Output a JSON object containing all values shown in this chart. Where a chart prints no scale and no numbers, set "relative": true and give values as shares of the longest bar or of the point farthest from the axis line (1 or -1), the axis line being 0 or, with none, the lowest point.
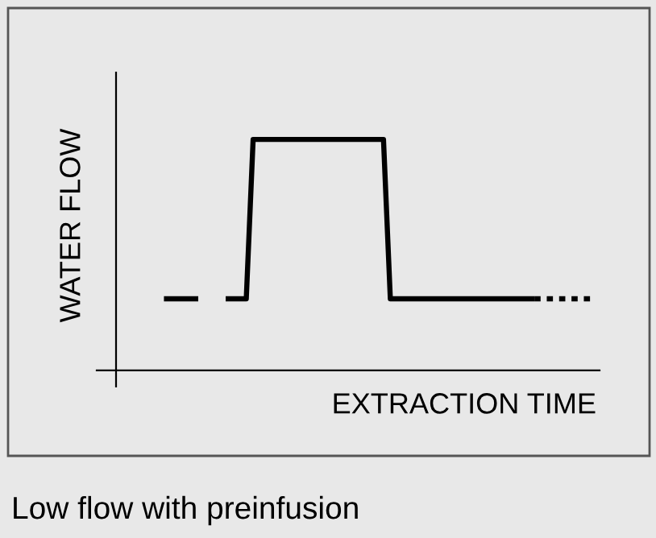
{
  "chart_data": {
    "type": "line",
    "relative": true,
    "xlabel": "EXTRACTION TIME",
    "ylabel": "WATER FLOW",
    "annotations": [
      "Low flow with preinfusion"
    ],
    "legend": false,
    "marker": "none",
    "categories": [
      null,
      null,
      null,
      null,
      null,
      null,
      null,
      null,
      null,
      null,
      null,
      null,
      null,
      null,
      null,
      null,
      null,
      null,
      null,
      null,
      null,
      null,
      null,
      null,
      null,
      null,
      null,
      null,
      null,
      null,
      null,
      null,
      null,
      null,
      null,
      null,
      null,
      null,
      null,
      null,
      null,
      null,
      null,
      null,
      null,
      null,
      null,
      null,
      null,
      null,
      null,
      null,
      null,
      null,
      null,
      null,
      null,
      null,
      null,
      null,
      null,
      null,
      null,
      null,
      null,
      null,
      null,
      null,
      null,
      null,
      null
    ],
    "series": [
      {
        "color": "#000000",
        "line_style": "solid",
        "values": [
          null,
          null,
          null,
          null,
          null,
          null,
          null,
          0.31,
          0.31,
          0.31,
          0.31,
          0.31,
          0.31,
          null,
          null,
          null,
          null,
          null,
          null,
          null,
          null,
          null,
          null,
          null,
          null,
          null,
          null,
          null,
          null,
          null,
          null,
          null,
          null,
          null,
          null,
          null,
          null,
          null,
          null,
          null,
          null,
          null,
          null,
          null,
          null,
          null,
          null,
          null,
          null,
          null,
          null,
          null,
          null,
          null,
          null,
          null,
          null,
          null,
          null,
          null,
          null,
          null,
          null,
          null,
          null,
          null,
          null,
          null,
          null,
          null,
          null
        ]
      },
      {
        "color": "#000000",
        "line_style": "solid",
        "values": [
          null,
          null,
          null,
          null,
          null,
          null,
          null,
          null,
          null,
          null,
          null,
          null,
          null,
          null,
          null,
          null,
          0.31,
          0.31,
          0.31,
          0.31,
          1,
          1,
          1,
          1,
          1,
          1,
          1,
          1,
          1,
          1,
          1,
          1,
          1,
          1,
          1,
          1,
          1,
          1,
          1,
          1,
          0.31,
          0.31,
          0.31,
          0.31,
          0.31,
          0.31,
          0.31,
          0.31,
          0.31,
          0.31,
          0.31,
          0.31,
          0.31,
          0.31,
          0.31,
          0.31,
          0.31,
          0.31,
          0.31,
          0.31,
          0.31,
          0.31,
          null,
          null,
          null,
          null,
          null,
          null,
          null,
          null,
          null
        ]
      },
      {
        "color": "#000000",
        "line_style": "dotted",
        "values": [
          null,
          null,
          null,
          null,
          null,
          null,
          null,
          null,
          null,
          null,
          null,
          null,
          null,
          null,
          null,
          null,
          null,
          null,
          null,
          null,
          null,
          null,
          null,
          null,
          null,
          null,
          null,
          null,
          null,
          null,
          null,
          null,
          null,
          null,
          null,
          null,
          null,
          null,
          null,
          null,
          null,
          null,
          null,
          null,
          null,
          null,
          null,
          null,
          null,
          null,
          null,
          null,
          null,
          null,
          null,
          null,
          null,
          null,
          null,
          null,
          null,
          0.31,
          0.31,
          0.31,
          0.31,
          0.31,
          0.31,
          0.31,
          0.31,
          0.31,
          0.31
        ]
      }
    ]
  }
}
